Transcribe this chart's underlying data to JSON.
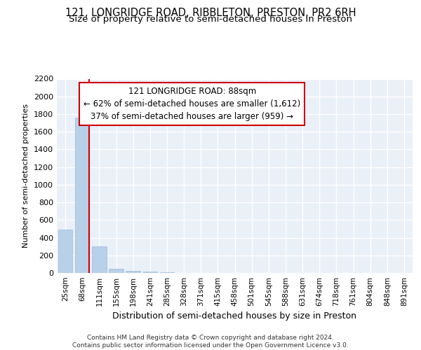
{
  "title1": "121, LONGRIDGE ROAD, RIBBLETON, PRESTON, PR2 6RH",
  "title2": "Size of property relative to semi-detached houses in Preston",
  "xlabel": "Distribution of semi-detached houses by size in Preston",
  "ylabel": "Number of semi-detached properties",
  "bins": [
    "25sqm",
    "68sqm",
    "111sqm",
    "155sqm",
    "198sqm",
    "241sqm",
    "285sqm",
    "328sqm",
    "371sqm",
    "415sqm",
    "458sqm",
    "501sqm",
    "545sqm",
    "588sqm",
    "631sqm",
    "674sqm",
    "718sqm",
    "761sqm",
    "804sqm",
    "848sqm",
    "891sqm"
  ],
  "values": [
    490,
    1760,
    305,
    50,
    20,
    15,
    10,
    0,
    0,
    0,
    0,
    0,
    0,
    0,
    0,
    0,
    0,
    0,
    0,
    0,
    0
  ],
  "bar_color": "#b8d0e8",
  "bar_edge_color": "#99bbdd",
  "vline_color": "#cc0000",
  "annotation_text": "121 LONGRIDGE ROAD: 88sqm\n← 62% of semi-detached houses are smaller (1,612)\n37% of semi-detached houses are larger (959) →",
  "annotation_box_color": "#ffffff",
  "annotation_border_color": "#cc0000",
  "footer": "Contains HM Land Registry data © Crown copyright and database right 2024.\nContains public sector information licensed under the Open Government Licence v3.0.",
  "ylim": [
    0,
    2200
  ],
  "yticks": [
    0,
    200,
    400,
    600,
    800,
    1000,
    1200,
    1400,
    1600,
    1800,
    2000,
    2200
  ],
  "bg_color": "#eaf0f8",
  "grid_color": "#ffffff",
  "title1_fontsize": 10.5,
  "title2_fontsize": 9.5
}
